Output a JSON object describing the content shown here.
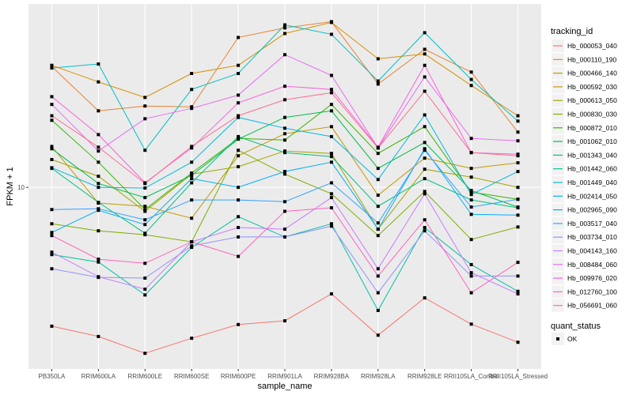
{
  "chart_data": {
    "type": "line",
    "title": "",
    "xlabel": "sample_name",
    "ylabel": "FPKM + 1",
    "y_scale": "log10",
    "ylim": [
      4.5,
      22.4
    ],
    "y_ticks": [
      10
    ],
    "y_tick_labels": [
      "10"
    ],
    "grid": true,
    "legend_position": "right",
    "categories": [
      "PB350LA",
      "RRIM600LA",
      "RRIM600LE",
      "RRIM600SE",
      "RRIM600PE",
      "RRIM901LA",
      "RRIM928BA",
      "RRIM928LA",
      "RRIM928LE",
      "RRII105LA_Control",
      "RRII105LA_Stressed"
    ],
    "color_legend_title": "tracking_id",
    "shape_legend_title": "quant_status",
    "shape_legend_items": [
      "OK"
    ],
    "series": [
      {
        "name": "Hb_000053_040",
        "color": "#F8766D",
        "values": [
          5.43,
          5.19,
          4.82,
          5.15,
          5.47,
          5.56,
          6.26,
          5.22,
          6.15,
          5.48,
          5.06
        ]
      },
      {
        "name": "Hb_000110_190",
        "color": "#EA8331",
        "values": [
          17.0,
          14.0,
          14.3,
          14.25,
          19.33,
          20.16,
          20.72,
          15.75,
          18.35,
          16.6,
          12.75
        ]
      },
      {
        "name": "Hb_000466_140",
        "color": "#D89000",
        "values": [
          17.1,
          15.9,
          14.85,
          16.5,
          17.1,
          19.67,
          20.65,
          17.6,
          17.98,
          15.65,
          13.7
        ]
      },
      {
        "name": "Hb_000592_030",
        "color": "#C09B00",
        "values": [
          11.97,
          9.33,
          9.2,
          8.73,
          11.49,
          12.66,
          13.06,
          9.66,
          11.37,
          10.87,
          11.14
        ]
      },
      {
        "name": "Hb_000613_050",
        "color": "#A3A500",
        "values": [
          11.3,
          10.5,
          9.0,
          10.6,
          10.95,
          11.73,
          11.61,
          8.32,
          10.83,
          10.46,
          10.0
        ]
      },
      {
        "name": "Hb_000830_030",
        "color": "#7CAE00",
        "values": [
          8.52,
          8.26,
          8.12,
          7.87,
          11.77,
          10.6,
          9.72,
          8.09,
          9.82,
          7.95,
          8.4
        ]
      },
      {
        "name": "Hb_000872_010",
        "color": "#39B600",
        "values": [
          13.43,
          11.17,
          9.07,
          10.65,
          12.4,
          12.31,
          14.4,
          11.61,
          13.06,
          9.79,
          9.49
        ]
      },
      {
        "name": "Hb_001062_010",
        "color": "#00BB4E",
        "values": [
          11.85,
          10.17,
          9.56,
          10.54,
          12.36,
          13.6,
          14.0,
          10.87,
          12.18,
          9.86,
          9.17
        ]
      },
      {
        "name": "Hb_001343_040",
        "color": "#00BF7D",
        "values": [
          10.87,
          9.36,
          8.17,
          10.2,
          12.5,
          11.65,
          11.45,
          9.2,
          10.39,
          9.46,
          9.14
        ]
      },
      {
        "name": "Hb_001442_060",
        "color": "#00C1A3",
        "values": [
          7.44,
          7.2,
          6.23,
          7.68,
          8.79,
          8.04,
          8.52,
          5.82,
          8.38,
          7.12,
          6.33
        ]
      },
      {
        "name": "Hb_001449_040",
        "color": "#00BFC4",
        "values": [
          16.9,
          17.2,
          11.77,
          15.38,
          16.5,
          20.43,
          19.6,
          15.96,
          19.74,
          16.07,
          13.38
        ]
      },
      {
        "name": "Hb_002414_050",
        "color": "#00BAE0",
        "values": [
          10.9,
          10.0,
          9.97,
          11.17,
          13.6,
          12.97,
          12.5,
          10.35,
          13.75,
          9.69,
          10.72
        ]
      },
      {
        "name": "Hb_002965_090",
        "color": "#00B0F6",
        "values": [
          8.2,
          9.04,
          8.49,
          10.39,
          10.0,
          10.72,
          11.17,
          8.32,
          11.85,
          8.88,
          8.85
        ]
      },
      {
        "name": "Hb_003517_040",
        "color": "#35A2FF",
        "values": [
          9.07,
          9.1,
          8.67,
          9.46,
          9.46,
          9.39,
          10.2,
          8.55,
          11.77,
          9.17,
          9.49
        ]
      },
      {
        "name": "Hb_003734_010",
        "color": "#9590FF",
        "values": [
          6.99,
          6.73,
          6.71,
          7.73,
          8.04,
          8.04,
          8.43,
          6.29,
          8.26,
          6.77,
          6.77
        ]
      },
      {
        "name": "Hb_004143_160",
        "color": "#C77CFF",
        "values": [
          7.52,
          6.75,
          6.39,
          7.87,
          8.38,
          8.32,
          9.56,
          6.99,
          9.72,
          6.87,
          6.26
        ]
      },
      {
        "name": "Hb_008484_060",
        "color": "#E76BF3",
        "values": [
          14.4,
          11.73,
          13.52,
          14.15,
          15.0,
          17.92,
          16.36,
          11.89,
          16.25,
          12.4,
          12.27
        ]
      },
      {
        "name": "Hb_009976_020",
        "color": "#FA62DB",
        "values": [
          14.9,
          12.61,
          10.2,
          11.89,
          14.5,
          15.6,
          15.38,
          11.93,
          17.1,
          11.65,
          11.57
        ]
      },
      {
        "name": "Hb_012760_100",
        "color": "#FF62BC",
        "values": [
          8.09,
          7.29,
          7.16,
          7.87,
          7.38,
          9.0,
          9.14,
          6.77,
          8.67,
          6.29,
          7.19
        ]
      },
      {
        "name": "Hb_056691_060",
        "color": "#FF6C91",
        "values": [
          13.7,
          11.93,
          10.17,
          11.97,
          13.7,
          14.7,
          15.16,
          11.89,
          15.26,
          11.65,
          11.49
        ]
      }
    ]
  },
  "colors": {
    "panel_background": "#EBEBEB",
    "grid": "#FFFFFF",
    "point": "#000000"
  }
}
